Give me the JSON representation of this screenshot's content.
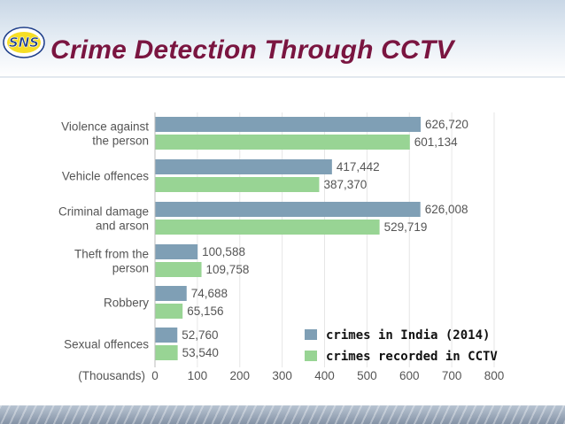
{
  "slide": {
    "title": "Crime Detection Through CCTV",
    "logo_text": "SNS",
    "colors": {
      "title": "#7a1540",
      "logo_yellow": "#f5d800",
      "logo_blue": "#1f3f8a"
    }
  },
  "chart_data": {
    "type": "bar",
    "orientation": "horizontal",
    "categories": [
      [
        "Violence against",
        "the person"
      ],
      [
        "Vehicle offences"
      ],
      [
        "Criminal damage",
        "and arson"
      ],
      [
        "Theft from the",
        "person"
      ],
      [
        "Robbery"
      ],
      [
        "Sexual offences"
      ]
    ],
    "series": [
      {
        "name": "crimes in India (2014)",
        "color": "#7f9fb5",
        "values": [
          626.72,
          417.442,
          626.008,
          100.588,
          74.688,
          52.76
        ],
        "labels": [
          "626,720",
          "417,442",
          "626,008",
          "100,588",
          "74,688",
          "52,760"
        ]
      },
      {
        "name": "crimes recorded in CCTV",
        "color": "#98d494",
        "values": [
          601.134,
          387.37,
          529.719,
          109.758,
          65.156,
          53.54
        ],
        "labels": [
          "601,134",
          "387,370",
          "529,719",
          "109,758",
          "65,156",
          "53,540"
        ]
      }
    ],
    "xlabel": "(Thousands)",
    "xlim": [
      0,
      800
    ],
    "xticks": [
      0,
      100,
      200,
      300,
      400,
      500,
      600,
      700,
      800
    ],
    "grid": true,
    "legend_position": "bottom-right"
  }
}
